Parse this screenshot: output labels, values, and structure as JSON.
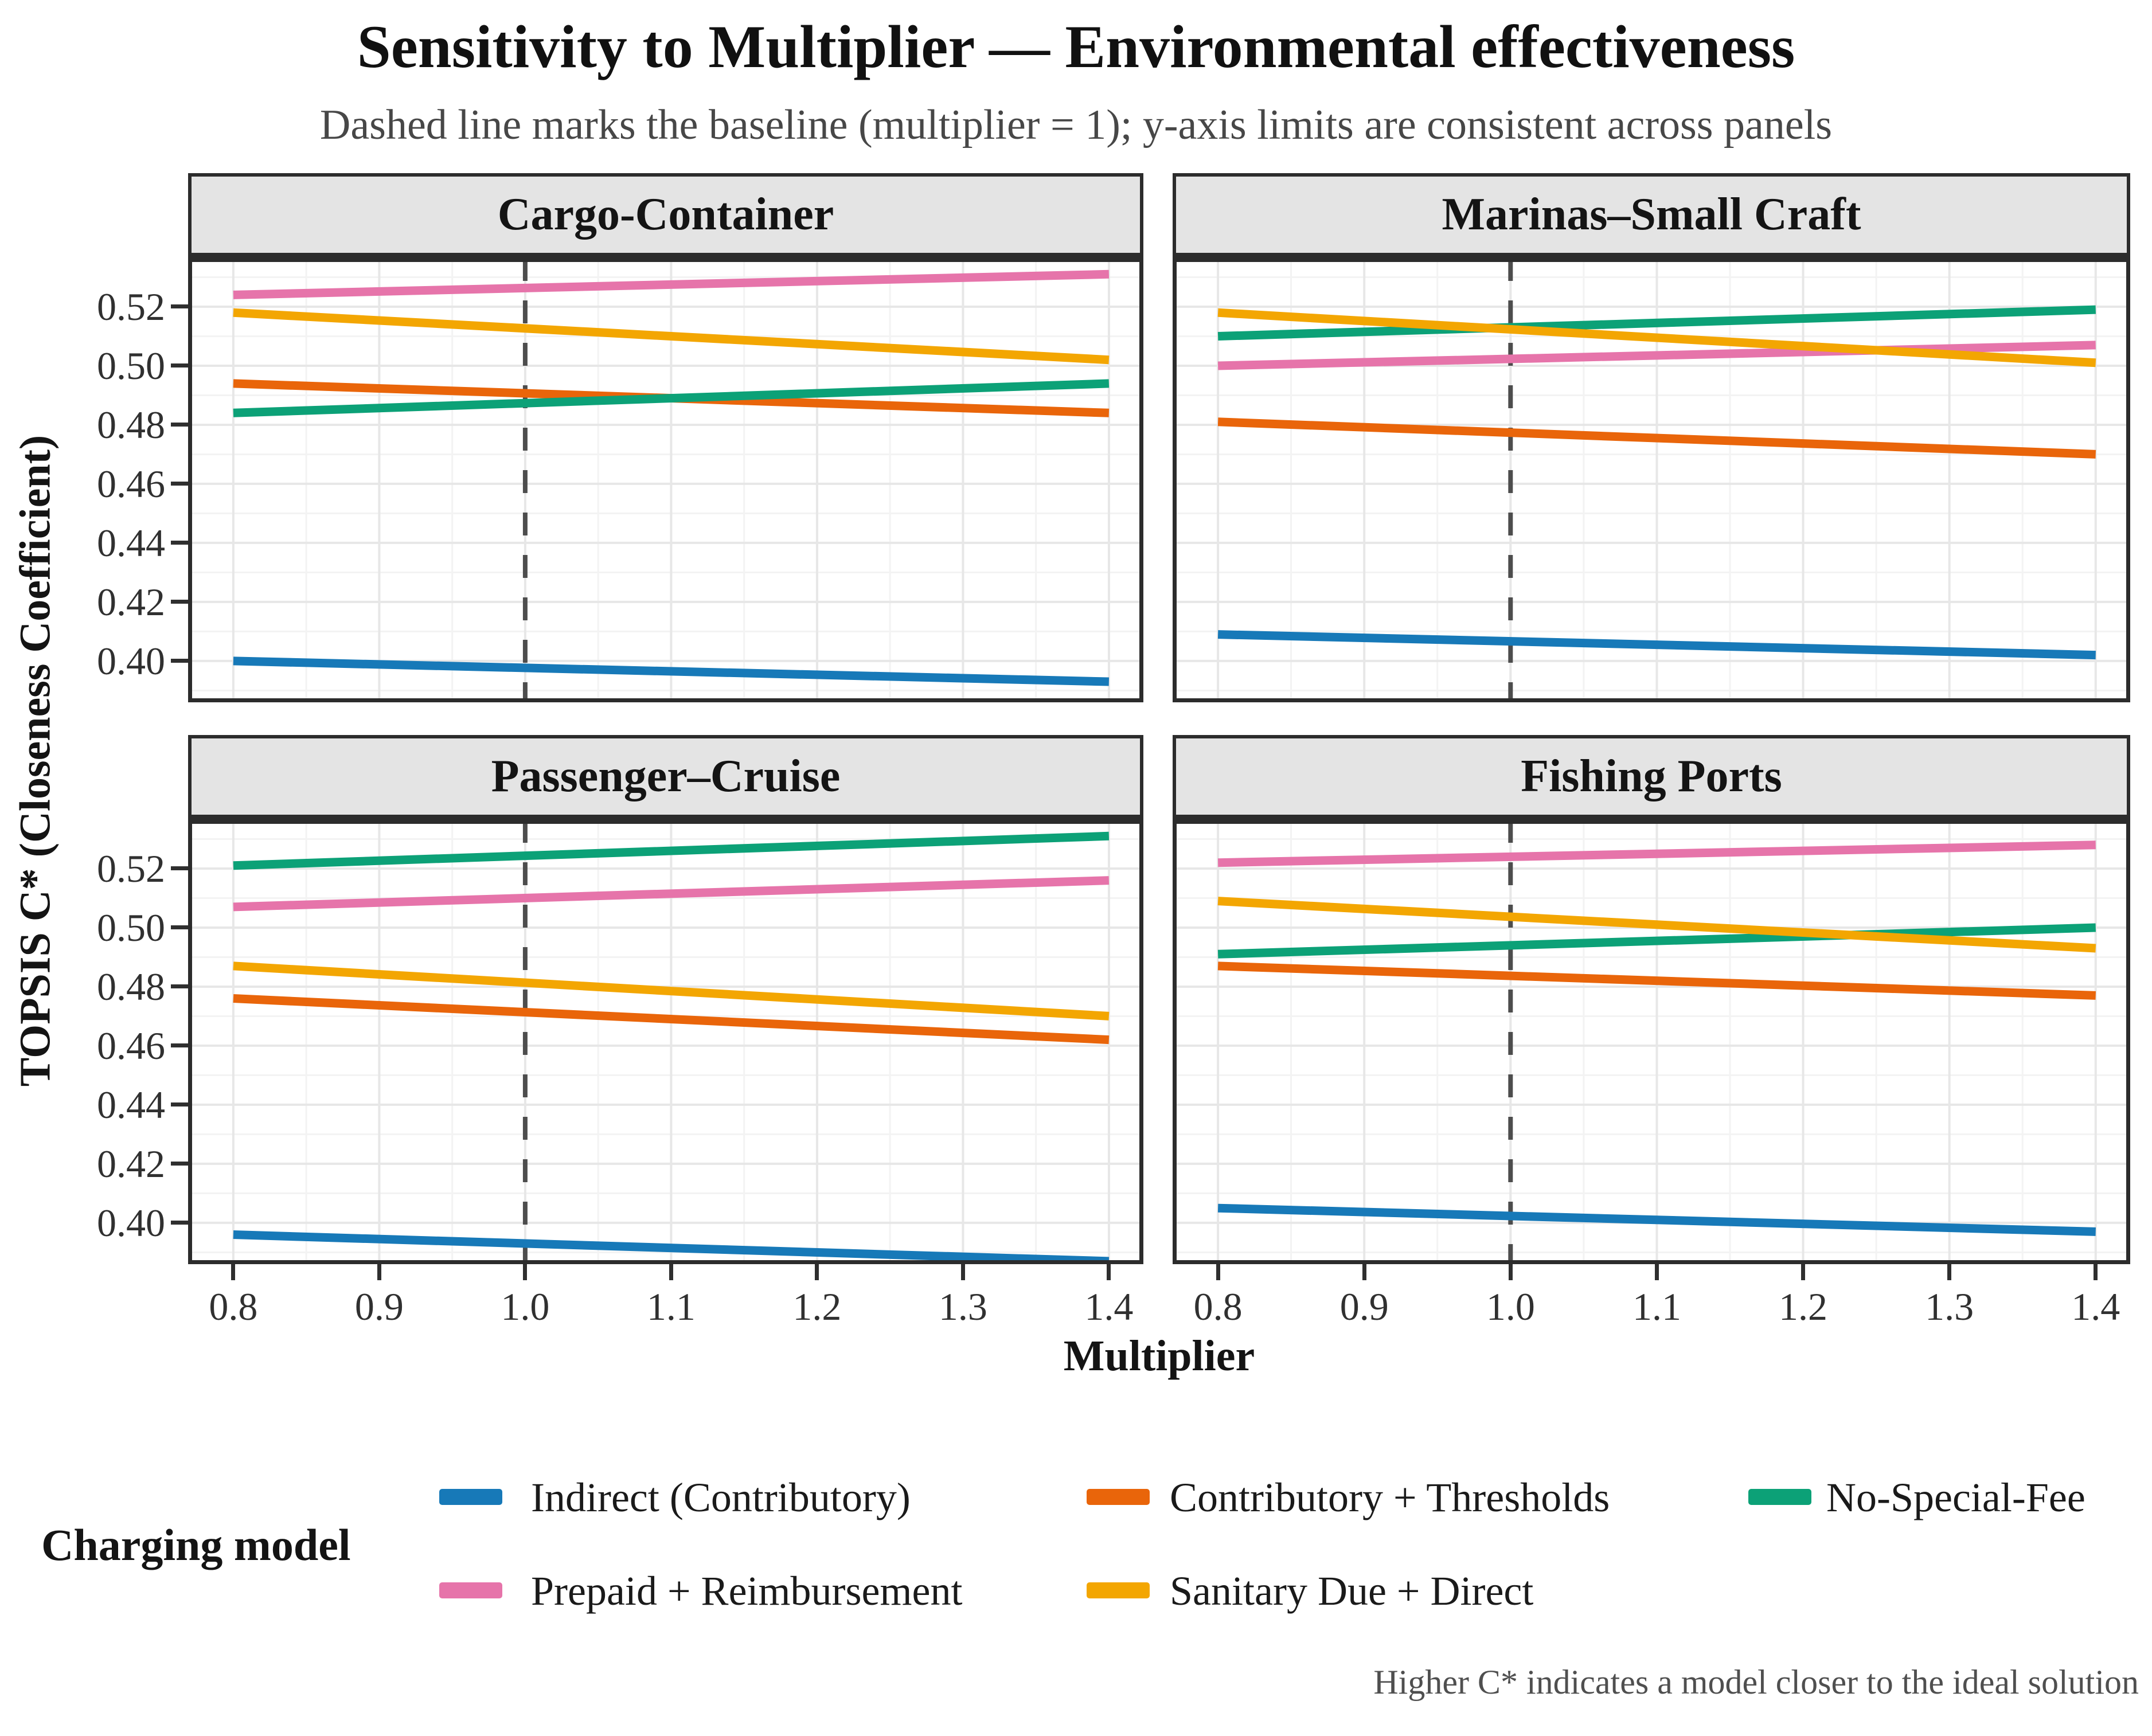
{
  "header": {
    "title": "Sensitivity to Multiplier — Environmental effectiveness",
    "subtitle": "Dashed line marks the baseline (multiplier = 1); y-axis limits are consistent across panels"
  },
  "axes": {
    "x_title": "Multiplier",
    "y_title": "TOPSIS C* (Closeness Coefficient)"
  },
  "legend": {
    "title": "Charging model",
    "items": [
      {
        "label": "Indirect (Contributory)",
        "color": "#1779b8"
      },
      {
        "label": "Contributory + Thresholds",
        "color": "#e9650a"
      },
      {
        "label": "No-Special-Fee",
        "color": "#0ca177"
      },
      {
        "label": "Prepaid + Reimbursement",
        "color": "#e674aa"
      },
      {
        "label": "Sanitary Due + Direct",
        "color": "#f3a602"
      }
    ]
  },
  "caption": "Higher C* indicates a model closer to the ideal solution",
  "chart_data": {
    "type": "line",
    "title": "Sensitivity to Multiplier — Environmental effectiveness",
    "xlabel": "Multiplier",
    "ylabel": "TOPSIS C* (Closeness Coefficient)",
    "xlim": [
      0.769,
      1.4236
    ],
    "ylim": [
      0.386,
      0.5365
    ],
    "x_ticks": [
      0.8,
      0.9,
      1.0,
      1.1,
      1.2,
      1.3,
      1.4
    ],
    "x_tick_labels": [
      "0.8",
      "0.9",
      "1.0",
      "1.1",
      "1.2",
      "1.3",
      "1.4"
    ],
    "y_ticks": [
      0.4,
      0.42,
      0.44,
      0.46,
      0.48,
      0.5,
      0.52
    ],
    "y_tick_labels": [
      "0.40",
      "0.42",
      "0.44",
      "0.46",
      "0.48",
      "0.50",
      "0.52"
    ],
    "x_minor": [
      0.85,
      0.95,
      1.05,
      1.15,
      1.25,
      1.35
    ],
    "y_minor": [
      0.39,
      0.41,
      0.43,
      0.45,
      0.47,
      0.49,
      0.51,
      0.53
    ],
    "baseline_x": 1.0,
    "grid": "major+minor",
    "legend_position": "bottom",
    "panels": [
      {
        "title": "Cargo-Container",
        "series": [
          {
            "name": "Indirect (Contributory)",
            "color": "#1779b8",
            "x": [
              0.8,
              1.4
            ],
            "y": [
              0.4,
              0.393
            ]
          },
          {
            "name": "Contributory + Thresholds",
            "color": "#e9650a",
            "x": [
              0.8,
              1.4
            ],
            "y": [
              0.494,
              0.484
            ]
          },
          {
            "name": "No-Special-Fee",
            "color": "#0ca177",
            "x": [
              0.8,
              1.4
            ],
            "y": [
              0.484,
              0.494
            ]
          },
          {
            "name": "Prepaid + Reimbursement",
            "color": "#e674aa",
            "x": [
              0.8,
              1.4
            ],
            "y": [
              0.524,
              0.531
            ]
          },
          {
            "name": "Sanitary Due + Direct",
            "color": "#f3a602",
            "x": [
              0.8,
              1.4
            ],
            "y": [
              0.518,
              0.502
            ]
          }
        ]
      },
      {
        "title": "Marinas–Small Craft",
        "series": [
          {
            "name": "Indirect (Contributory)",
            "color": "#1779b8",
            "x": [
              0.8,
              1.4
            ],
            "y": [
              0.409,
              0.402
            ]
          },
          {
            "name": "Contributory + Thresholds",
            "color": "#e9650a",
            "x": [
              0.8,
              1.4
            ],
            "y": [
              0.481,
              0.47
            ]
          },
          {
            "name": "No-Special-Fee",
            "color": "#0ca177",
            "x": [
              0.8,
              1.4
            ],
            "y": [
              0.51,
              0.519
            ]
          },
          {
            "name": "Prepaid + Reimbursement",
            "color": "#e674aa",
            "x": [
              0.8,
              1.4
            ],
            "y": [
              0.5,
              0.507
            ]
          },
          {
            "name": "Sanitary Due + Direct",
            "color": "#f3a602",
            "x": [
              0.8,
              1.4
            ],
            "y": [
              0.518,
              0.501
            ]
          }
        ]
      },
      {
        "title": "Passenger–Cruise",
        "series": [
          {
            "name": "Indirect (Contributory)",
            "color": "#1779b8",
            "x": [
              0.8,
              1.4
            ],
            "y": [
              0.396,
              0.387
            ]
          },
          {
            "name": "Contributory + Thresholds",
            "color": "#e9650a",
            "x": [
              0.8,
              1.4
            ],
            "y": [
              0.476,
              0.462
            ]
          },
          {
            "name": "No-Special-Fee",
            "color": "#0ca177",
            "x": [
              0.8,
              1.4
            ],
            "y": [
              0.521,
              0.531
            ]
          },
          {
            "name": "Prepaid + Reimbursement",
            "color": "#e674aa",
            "x": [
              0.8,
              1.4
            ],
            "y": [
              0.507,
              0.516
            ]
          },
          {
            "name": "Sanitary Due + Direct",
            "color": "#f3a602",
            "x": [
              0.8,
              1.4
            ],
            "y": [
              0.487,
              0.47
            ]
          }
        ]
      },
      {
        "title": "Fishing Ports",
        "series": [
          {
            "name": "Indirect (Contributory)",
            "color": "#1779b8",
            "x": [
              0.8,
              1.4
            ],
            "y": [
              0.405,
              0.397
            ]
          },
          {
            "name": "Contributory + Thresholds",
            "color": "#e9650a",
            "x": [
              0.8,
              1.4
            ],
            "y": [
              0.487,
              0.477
            ]
          },
          {
            "name": "No-Special-Fee",
            "color": "#0ca177",
            "x": [
              0.8,
              1.4
            ],
            "y": [
              0.491,
              0.5
            ]
          },
          {
            "name": "Prepaid + Reimbursement",
            "color": "#e674aa",
            "x": [
              0.8,
              1.4
            ],
            "y": [
              0.522,
              0.528
            ]
          },
          {
            "name": "Sanitary Due + Direct",
            "color": "#f3a602",
            "x": [
              0.8,
              1.4
            ],
            "y": [
              0.509,
              0.493
            ]
          }
        ]
      }
    ]
  }
}
